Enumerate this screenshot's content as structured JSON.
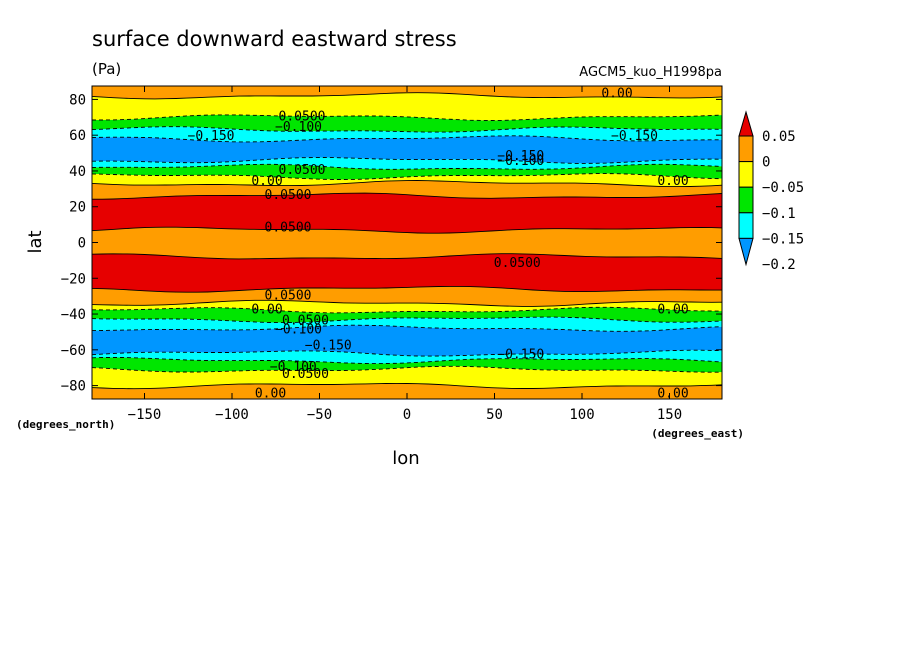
{
  "figure": {
    "title": "surface downward eastward stress",
    "units": "(Pa)",
    "model": "AGCM5_kuo_H1998pa",
    "x_unit_note": "(degrees_east)",
    "y_unit_note": "(degrees_north)",
    "xlabel": "lon",
    "ylabel": "lat"
  },
  "chart_data": {
    "type": "heatmap",
    "title": "surface downward eastward stress",
    "subtitle": "(Pa)",
    "xlabel": "lon",
    "ylabel": "lat",
    "xlim": [
      -180,
      180
    ],
    "ylim": [
      -87.5,
      87.5
    ],
    "x_ticks": [
      -150,
      -100,
      -50,
      0,
      50,
      100,
      150
    ],
    "y_ticks": [
      -80,
      -60,
      -40,
      -20,
      0,
      20,
      40,
      60,
      80
    ],
    "x_tick_labels": [
      "−150",
      "−100",
      "−50",
      "0",
      "50",
      "100",
      "150"
    ],
    "y_tick_labels": [
      "−80",
      "−60",
      "−40",
      "−20",
      "0",
      "20",
      "40",
      "60",
      "80"
    ],
    "grid": false,
    "colorbar": {
      "placement": "right",
      "levels": [
        0.05,
        0,
        -0.05,
        -0.1,
        -0.15,
        -0.2
      ],
      "labels": [
        "0.05",
        "0",
        "−0.05",
        "−0.1",
        "−0.15",
        "−0.2"
      ],
      "colors": [
        "#e60000",
        "#ff9d00",
        "#ffff00",
        "#00e600",
        "#00ffff",
        "#0096ff"
      ],
      "top_arrow_color": "#e60000",
      "bottom_arrow_color": "#0096ff"
    },
    "zonal_bands": [
      {
        "lat_from": 87.5,
        "lat_to": 82,
        "class": "0.00 to 0.05"
      },
      {
        "lat_from": 82,
        "lat_to": 70,
        "class": "-0.05 to 0.00"
      },
      {
        "lat_from": 70,
        "lat_to": 63,
        "class": "-0.10 to -0.05"
      },
      {
        "lat_from": 63,
        "lat_to": 58,
        "class": "-0.15 to -0.10"
      },
      {
        "lat_from": 58,
        "lat_to": 46,
        "class": "-0.20 to -0.15"
      },
      {
        "lat_from": 46,
        "lat_to": 42,
        "class": "-0.15 to -0.10"
      },
      {
        "lat_from": 42,
        "lat_to": 37,
        "class": "-0.10 to -0.05"
      },
      {
        "lat_from": 37,
        "lat_to": 33,
        "class": "-0.05 to 0.00"
      },
      {
        "lat_from": 33,
        "lat_to": 26,
        "class": "0.00 to 0.05"
      },
      {
        "lat_from": 26,
        "lat_to": 7,
        "class": "> 0.05"
      },
      {
        "lat_from": 7,
        "lat_to": -8,
        "class": "0.00 to 0.05"
      },
      {
        "lat_from": -8,
        "lat_to": -26,
        "class": "> 0.05"
      },
      {
        "lat_from": -26,
        "lat_to": -34,
        "class": "0.00 to 0.05"
      },
      {
        "lat_from": -34,
        "lat_to": -38,
        "class": "-0.05 to 0.00"
      },
      {
        "lat_from": -38,
        "lat_to": -43,
        "class": "-0.10 to -0.05"
      },
      {
        "lat_from": -43,
        "lat_to": -48,
        "class": "-0.15 to -0.10"
      },
      {
        "lat_from": -48,
        "lat_to": -62,
        "class": "-0.20 to -0.15"
      },
      {
        "lat_from": -62,
        "lat_to": -66,
        "class": "-0.15 to -0.10"
      },
      {
        "lat_from": -66,
        "lat_to": -71,
        "class": "-0.10 to -0.05"
      },
      {
        "lat_from": -71,
        "lat_to": -80,
        "class": "-0.05 to 0.00"
      },
      {
        "lat_from": -80,
        "lat_to": -87.5,
        "class": "0.00 to 0.05"
      }
    ],
    "class_colors": {
      "> 0.05": "#e60000",
      "0.00 to 0.05": "#ff9d00",
      "-0.05 to 0.00": "#ffff00",
      "-0.10 to -0.05": "#00e600",
      "-0.15 to -0.10": "#00ffff",
      "-0.20 to -0.15": "#0096ff"
    },
    "contour_labels": [
      {
        "text": "0.00",
        "lon": 120,
        "lat": 84
      },
      {
        "text": "0.0500",
        "lon": -60,
        "lat": 71
      },
      {
        "text": "−0.100",
        "lon": -62,
        "lat": 65
      },
      {
        "text": "−0.150",
        "lon": -112,
        "lat": 60
      },
      {
        "text": "−0.150",
        "lon": 130,
        "lat": 60
      },
      {
        "text": "−0.150",
        "lon": 65,
        "lat": 49
      },
      {
        "text": "−0.100",
        "lon": 65,
        "lat": 46
      },
      {
        "text": "0.0500",
        "lon": -60,
        "lat": 41
      },
      {
        "text": "0.00",
        "lon": -80,
        "lat": 35
      },
      {
        "text": "0.00",
        "lon": 152,
        "lat": 35
      },
      {
        "text": "0.0500",
        "lon": -68,
        "lat": 27
      },
      {
        "text": "0.0500",
        "lon": -68,
        "lat": 9
      },
      {
        "text": "0.0500",
        "lon": 63,
        "lat": -11
      },
      {
        "text": "0.0500",
        "lon": -68,
        "lat": -29
      },
      {
        "text": "0.00",
        "lon": -80,
        "lat": -37
      },
      {
        "text": "0.00",
        "lon": 152,
        "lat": -37
      },
      {
        "text": "0.0500",
        "lon": -58,
        "lat": -43
      },
      {
        "text": "−0.100",
        "lon": -62,
        "lat": -48
      },
      {
        "text": "−0.150",
        "lon": -45,
        "lat": -57
      },
      {
        "text": "−0.150",
        "lon": 65,
        "lat": -62
      },
      {
        "text": "−0.100",
        "lon": -65,
        "lat": -69
      },
      {
        "text": "0.0500",
        "lon": -58,
        "lat": -73
      },
      {
        "text": "0.00",
        "lon": -78,
        "lat": -84
      },
      {
        "text": "0.00",
        "lon": 152,
        "lat": -84
      }
    ]
  }
}
